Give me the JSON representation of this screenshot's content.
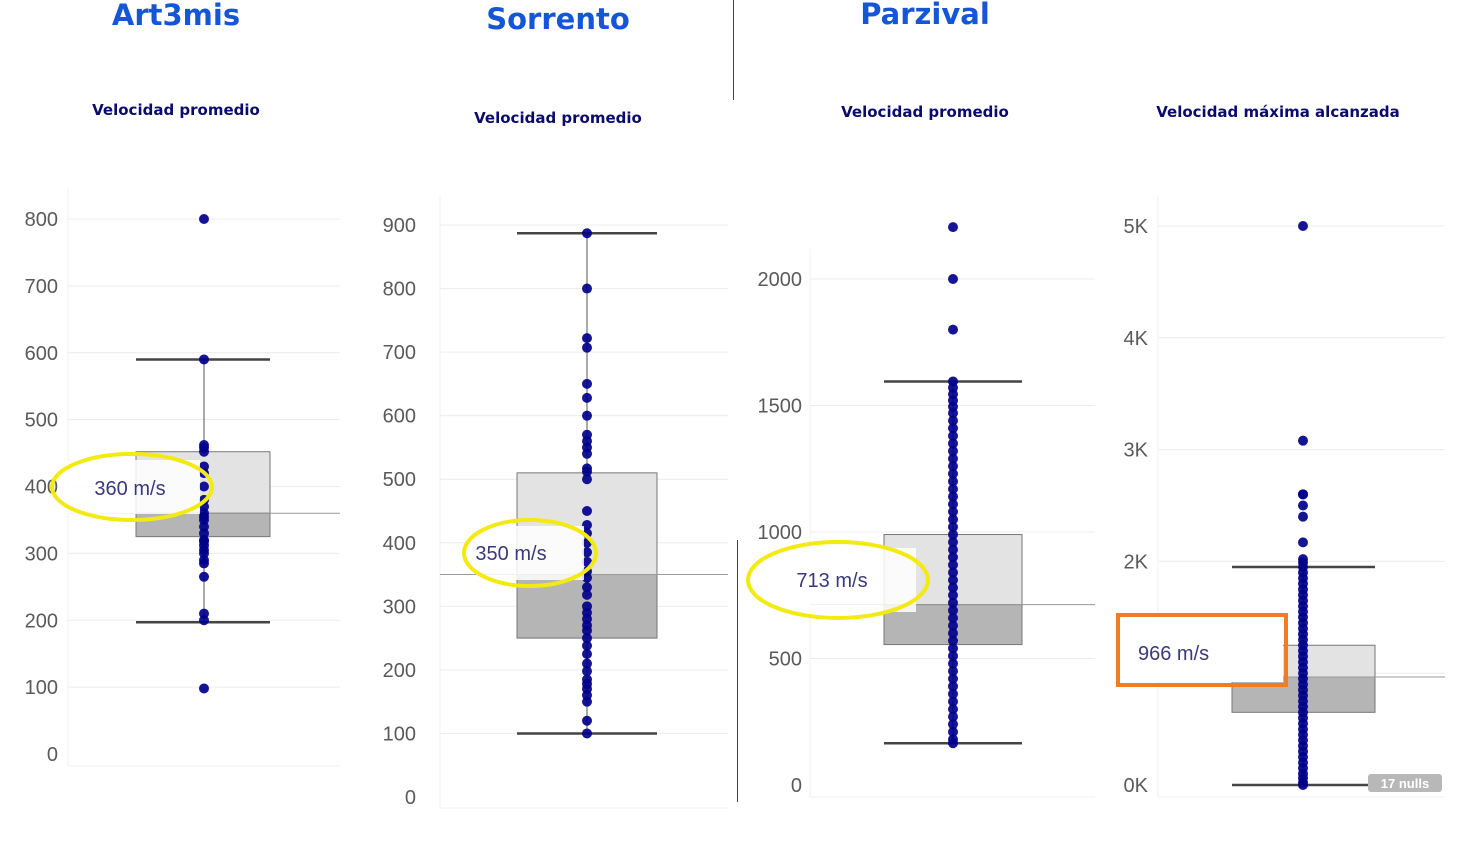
{
  "teams": {
    "art3mis": "Art3mis",
    "sorrento": "Sorrento",
    "parzival": "Parzival"
  },
  "colors": {
    "team_title": "#1456d6",
    "chart_title": "#0b0b6e",
    "point": "#00008b",
    "box_upper": "#e3e3e3",
    "box_lower": "#b5b5b5",
    "highlight_ellipse": "#f2ea10",
    "highlight_rect": "#f07c24"
  },
  "chart_data": [
    {
      "type": "boxplot",
      "team": "Art3mis",
      "title": "Velocidad promedio",
      "yticks": [
        "800",
        "700",
        "600",
        "500",
        "400",
        "300",
        "200",
        "100",
        "0"
      ],
      "ylim": [
        0,
        820
      ],
      "whisker_low": 197,
      "q1": 325,
      "median": 360,
      "q3": 452,
      "whisker_high": 590,
      "points": [
        800,
        590,
        462,
        458,
        452,
        430,
        420,
        400,
        380,
        370,
        360,
        355,
        350,
        340,
        330,
        320,
        318,
        312,
        305,
        300,
        290,
        285,
        265,
        210,
        200,
        98
      ],
      "annotation": {
        "label": "360 m/s",
        "style": "ellipse"
      }
    },
    {
      "type": "boxplot",
      "team": "Sorrento",
      "title": "Velocidad promedio",
      "yticks": [
        "900",
        "800",
        "700",
        "600",
        "500",
        "400",
        "300",
        "200",
        "100",
        "0"
      ],
      "ylim": [
        0,
        920
      ],
      "whisker_low": 100,
      "q1": 250,
      "median": 350,
      "q3": 510,
      "whisker_high": 887,
      "points": [
        887,
        800,
        722,
        707,
        650,
        628,
        600,
        570,
        560,
        550,
        540,
        517,
        512,
        500,
        450,
        428,
        415,
        400,
        385,
        370,
        355,
        345,
        330,
        318,
        300,
        290,
        280,
        270,
        262,
        250,
        238,
        225,
        210,
        198,
        185,
        178,
        170,
        160,
        150,
        120,
        100
      ],
      "annotation": {
        "label": "350 m/s",
        "style": "ellipse"
      }
    },
    {
      "type": "boxplot",
      "team": "Parzival",
      "title": "Velocidad promedio",
      "yticks": [
        "2000",
        "1500",
        "1000",
        "500",
        "0"
      ],
      "ylim": [
        0,
        2250
      ],
      "whisker_low": 165,
      "q1": 555,
      "median": 713,
      "q3": 990,
      "whisker_high": 1595,
      "points": [
        2205,
        2000,
        1800,
        1595,
        1570,
        1545,
        1520,
        1495,
        1470,
        1440,
        1410,
        1380,
        1350,
        1320,
        1290,
        1260,
        1230,
        1200,
        1170,
        1140,
        1110,
        1080,
        1050,
        1020,
        990,
        960,
        930,
        900,
        870,
        840,
        810,
        780,
        750,
        720,
        690,
        660,
        630,
        600,
        570,
        540,
        510,
        480,
        450,
        420,
        390,
        360,
        330,
        300,
        270,
        240,
        210,
        180,
        165
      ],
      "annotation": {
        "label": "713 m/s",
        "style": "ellipse"
      }
    },
    {
      "type": "boxplot",
      "team": "Parzival",
      "title": "Velocidad máxima alcanzada",
      "yticks": [
        "5K",
        "4K",
        "3K",
        "2K",
        "1K",
        "0K"
      ],
      "ylim": [
        0,
        5200
      ],
      "whisker_low": 0,
      "q1": 650,
      "median": 966,
      "q3": 1250,
      "whisker_high": 1950,
      "points": [
        5000,
        3080,
        2600,
        2600,
        2500,
        2400,
        2170,
        2020,
        1990,
        1950,
        1900,
        1850,
        1800,
        1750,
        1700,
        1650,
        1600,
        1550,
        1500,
        1450,
        1400,
        1350,
        1300,
        1250,
        1200,
        1150,
        1100,
        1050,
        1000,
        950,
        900,
        850,
        800,
        750,
        700,
        650,
        600,
        550,
        500,
        450,
        400,
        350,
        300,
        250,
        200,
        150,
        100,
        60,
        20,
        0
      ],
      "nulls_label": "17 nulls",
      "annotation": {
        "label": "966 m/s",
        "style": "rect"
      }
    }
  ]
}
